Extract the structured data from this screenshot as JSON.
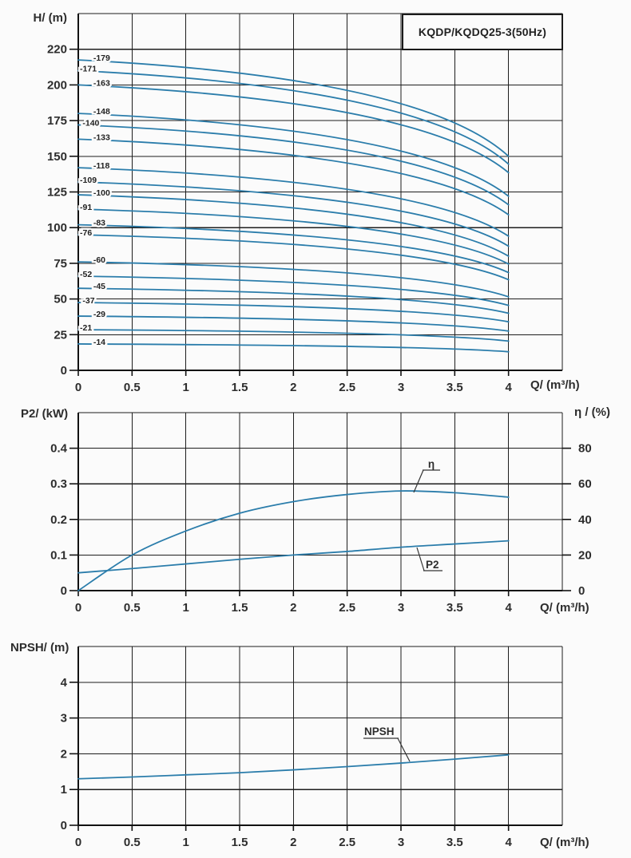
{
  "title": "KQDP/KQDQ25-3(50Hz)",
  "colors": {
    "curve": "#2b7dab",
    "grid": "#1d1d1d",
    "axis": "#111111",
    "text": "#2d2d2d",
    "curve_label_text": "#222222",
    "background": "#fbfbfb"
  },
  "axis_titles": {
    "head_y": "H/ (m)",
    "head_x": "Q/ (m³/h)",
    "power_y_left": "P2/ (kW)",
    "power_y_right": "η / (%)",
    "power_x": "Q/ (m³/h)",
    "npsh_y": "NPSH/ (m)",
    "npsh_x": "Q/ (m³/h)"
  },
  "chart_data": [
    {
      "id": "head-curves",
      "type": "line",
      "title": "KQDP/KQDQ25-3(50Hz)",
      "xlabel": "Q/ (m³/h)",
      "ylabel": "H/ (m)",
      "x_ticks": [
        "0",
        "0.5",
        "1",
        "1.5",
        "2",
        "2.5",
        "3",
        "3.5",
        "4"
      ],
      "y_ticks": [
        "0",
        "25",
        "50",
        "75",
        "100",
        "125",
        "150",
        "175",
        "200",
        "220"
      ],
      "x_grid_max": 4.5,
      "x_data_max": 4,
      "axis_note": "gridlines equally spaced; 200-to-220 spans one division",
      "series": [
        {
          "label": "-179",
          "h_shutoff": 214,
          "h_at_4": 150,
          "label_q": 0.14
        },
        {
          "label": "-171",
          "h_shutoff": 208,
          "h_at_4": 144.5,
          "label_q": 0.015
        },
        {
          "label": "-163",
          "h_shutoff": 200,
          "h_at_4": 138.5,
          "label_q": 0.14
        },
        {
          "label": "-148",
          "h_shutoff": 180,
          "h_at_4": 122,
          "label_q": 0.14
        },
        {
          "label": "-140",
          "h_shutoff": 172,
          "h_at_4": 116,
          "label_q": 0.04
        },
        {
          "label": "-133",
          "h_shutoff": 162,
          "h_at_4": 109,
          "label_q": 0.14
        },
        {
          "label": "-118",
          "h_shutoff": 142,
          "h_at_4": 94,
          "label_q": 0.14
        },
        {
          "label": "-109",
          "h_shutoff": 132,
          "h_at_4": 87,
          "label_q": 0.015
        },
        {
          "label": "-100",
          "h_shutoff": 123,
          "h_at_4": 80,
          "label_q": 0.14
        },
        {
          "label": "-91",
          "h_shutoff": 113,
          "h_at_4": 74.5,
          "label_q": 0.015
        },
        {
          "label": "-83",
          "h_shutoff": 102,
          "h_at_4": 68.5,
          "label_q": 0.14
        },
        {
          "label": "-76",
          "h_shutoff": 95,
          "h_at_4": 63.5,
          "label_q": 0.015
        },
        {
          "label": "-60",
          "h_shutoff": 76,
          "h_at_4": 51.5,
          "label_q": 0.14
        },
        {
          "label": "-52",
          "h_shutoff": 66,
          "h_at_4": 45.5,
          "label_q": 0.015
        },
        {
          "label": "-45",
          "h_shutoff": 57.5,
          "h_at_4": 40,
          "label_q": 0.14
        },
        {
          "label": "-37",
          "h_shutoff": 47.5,
          "h_at_4": 34,
          "label_q": 0.04
        },
        {
          "label": "-29",
          "h_shutoff": 38,
          "h_at_4": 27.5,
          "label_q": 0.14
        },
        {
          "label": "-21",
          "h_shutoff": 28.5,
          "h_at_4": 20.5,
          "label_q": 0.015
        },
        {
          "label": "-14",
          "h_shutoff": 18.5,
          "h_at_4": 13,
          "label_q": 0.14
        }
      ]
    },
    {
      "id": "power-efficiency",
      "type": "line",
      "xlabel": "Q/ (m³/h)",
      "ylabel_left": "P2/ (kW)",
      "ylabel_right": "η / (%)",
      "x": [
        0,
        0.5,
        1,
        1.5,
        2,
        2.5,
        3,
        3.5,
        4
      ],
      "x_ticks": [
        "0",
        "0.5",
        "1",
        "1.5",
        "2",
        "2.5",
        "3",
        "3.5",
        "4"
      ],
      "y_left_ticks": [
        "0",
        "0.1",
        "0.2",
        "0.3",
        "0.4"
      ],
      "y_right_ticks": [
        "0",
        "20",
        "40",
        "60",
        "80"
      ],
      "y_left_max_gridline": 0.5,
      "y_right_max_gridline": 100,
      "series": [
        {
          "name": "η",
          "axis": "right",
          "unit": "%",
          "values": [
            0,
            20,
            33.5,
            43.5,
            50,
            54,
            56,
            55,
            52.5
          ]
        },
        {
          "name": "P2",
          "axis": "left",
          "unit": "kW",
          "values": [
            0.05,
            0.062,
            0.075,
            0.088,
            0.1,
            0.11,
            0.122,
            0.131,
            0.14
          ]
        }
      ]
    },
    {
      "id": "npsh",
      "type": "line",
      "xlabel": "Q/ (m³/h)",
      "ylabel": "NPSH/ (m)",
      "x": [
        0,
        0.5,
        1,
        1.5,
        2,
        2.5,
        3,
        3.5,
        4
      ],
      "x_ticks": [
        "0",
        "0.5",
        "1",
        "1.5",
        "2",
        "2.5",
        "3",
        "3.5",
        "4"
      ],
      "y_ticks": [
        "0",
        "1",
        "2",
        "3",
        "4"
      ],
      "y_max_gridline": 5,
      "series": [
        {
          "name": "NPSH",
          "unit": "m",
          "values": [
            1.3,
            1.35,
            1.41,
            1.47,
            1.55,
            1.64,
            1.74,
            1.85,
            1.97
          ]
        }
      ]
    }
  ]
}
